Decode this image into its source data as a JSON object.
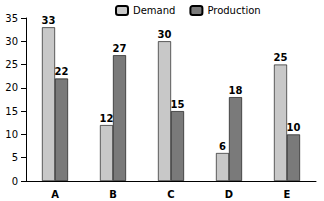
{
  "chart_data": {
    "type": "bar",
    "categories": [
      "A",
      "B",
      "C",
      "D",
      "E"
    ],
    "series": [
      {
        "name": "Demand",
        "color": "#c8c8c8",
        "values": [
          33,
          12,
          30,
          6,
          25
        ]
      },
      {
        "name": "Production",
        "color": "#7a7a7a",
        "values": [
          22,
          27,
          15,
          18,
          10
        ]
      }
    ],
    "ylim": [
      0,
      35
    ],
    "yticks": [
      0,
      5,
      10,
      15,
      20,
      25,
      30,
      35
    ],
    "grid": false,
    "data_labels": true,
    "legend": "top"
  }
}
